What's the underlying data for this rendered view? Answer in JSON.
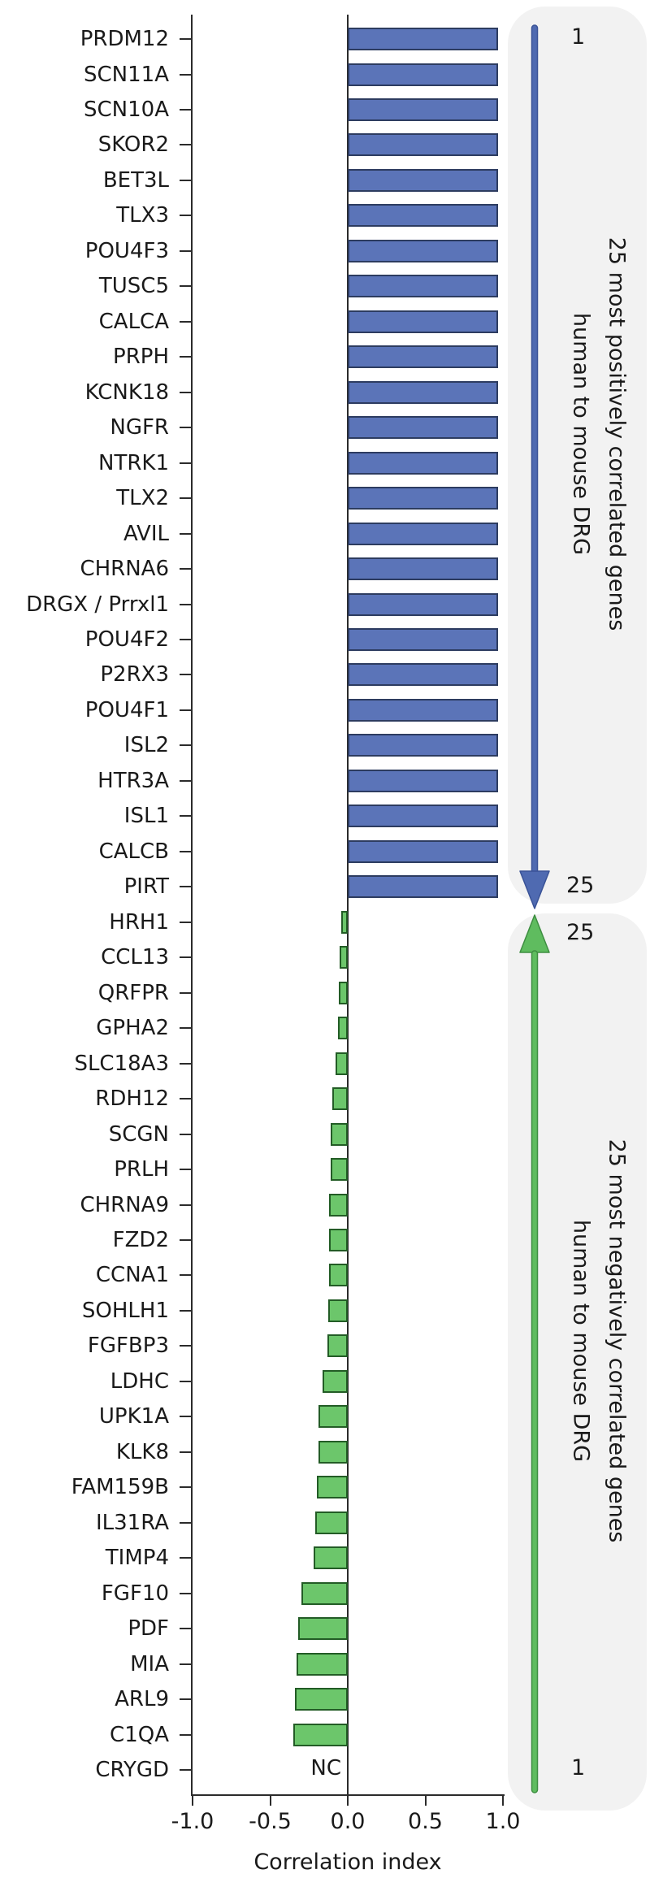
{
  "figure_title": "",
  "chart_data": {
    "type": "bar",
    "orientation": "horizontal",
    "xlabel": "Correlation index",
    "xlim": [
      -1.0,
      1.0
    ],
    "x_ticks": [
      -1.0,
      -0.5,
      0.0,
      0.5,
      1.0
    ],
    "x_tick_labels": [
      "-1.0",
      "-0.5",
      "0.0",
      "0.5",
      "1.0"
    ],
    "grid": false,
    "nc_annotation": "NC",
    "genes": [
      {
        "name": "PRDM12",
        "value": 0.97,
        "group": "positive"
      },
      {
        "name": "SCN11A",
        "value": 0.97,
        "group": "positive"
      },
      {
        "name": "SCN10A",
        "value": 0.97,
        "group": "positive"
      },
      {
        "name": "SKOR2",
        "value": 0.97,
        "group": "positive"
      },
      {
        "name": "BET3L",
        "value": 0.97,
        "group": "positive"
      },
      {
        "name": "TLX3",
        "value": 0.97,
        "group": "positive"
      },
      {
        "name": "POU4F3",
        "value": 0.97,
        "group": "positive"
      },
      {
        "name": "TUSC5",
        "value": 0.97,
        "group": "positive"
      },
      {
        "name": "CALCA",
        "value": 0.97,
        "group": "positive"
      },
      {
        "name": "PRPH",
        "value": 0.97,
        "group": "positive"
      },
      {
        "name": "KCNK18",
        "value": 0.97,
        "group": "positive"
      },
      {
        "name": "NGFR",
        "value": 0.97,
        "group": "positive"
      },
      {
        "name": "NTRK1",
        "value": 0.97,
        "group": "positive"
      },
      {
        "name": "TLX2",
        "value": 0.97,
        "group": "positive"
      },
      {
        "name": "AVIL",
        "value": 0.97,
        "group": "positive"
      },
      {
        "name": "CHRNA6",
        "value": 0.97,
        "group": "positive"
      },
      {
        "name": "DRGX / Prrxl1",
        "value": 0.97,
        "group": "positive"
      },
      {
        "name": "POU4F2",
        "value": 0.97,
        "group": "positive"
      },
      {
        "name": "P2RX3",
        "value": 0.97,
        "group": "positive"
      },
      {
        "name": "POU4F1",
        "value": 0.97,
        "group": "positive"
      },
      {
        "name": "ISL2",
        "value": 0.97,
        "group": "positive"
      },
      {
        "name": "HTR3A",
        "value": 0.97,
        "group": "positive"
      },
      {
        "name": "ISL1",
        "value": 0.97,
        "group": "positive"
      },
      {
        "name": "CALCB",
        "value": 0.97,
        "group": "positive"
      },
      {
        "name": "PIRT",
        "value": 0.97,
        "group": "positive"
      },
      {
        "name": "HRH1",
        "value": -0.04,
        "group": "negative"
      },
      {
        "name": "CCL13",
        "value": -0.05,
        "group": "negative"
      },
      {
        "name": "QRFPR",
        "value": -0.06,
        "group": "negative"
      },
      {
        "name": "GPHA2",
        "value": -0.065,
        "group": "negative"
      },
      {
        "name": "SLC18A3",
        "value": -0.08,
        "group": "negative"
      },
      {
        "name": "RDH12",
        "value": -0.1,
        "group": "negative"
      },
      {
        "name": "SCGN",
        "value": -0.11,
        "group": "negative"
      },
      {
        "name": "PRLH",
        "value": -0.11,
        "group": "negative"
      },
      {
        "name": "CHRNA9",
        "value": -0.12,
        "group": "negative"
      },
      {
        "name": "FZD2",
        "value": -0.12,
        "group": "negative"
      },
      {
        "name": "CCNA1",
        "value": -0.12,
        "group": "negative"
      },
      {
        "name": "SOHLH1",
        "value": -0.125,
        "group": "negative"
      },
      {
        "name": "FGFBP3",
        "value": -0.13,
        "group": "negative"
      },
      {
        "name": "LDHC",
        "value": -0.16,
        "group": "negative"
      },
      {
        "name": "UPK1A",
        "value": -0.19,
        "group": "negative"
      },
      {
        "name": "KLK8",
        "value": -0.19,
        "group": "negative"
      },
      {
        "name": "FAM159B",
        "value": -0.2,
        "group": "negative"
      },
      {
        "name": "IL31RA",
        "value": -0.21,
        "group": "negative"
      },
      {
        "name": "TIMP4",
        "value": -0.22,
        "group": "negative"
      },
      {
        "name": "FGF10",
        "value": -0.3,
        "group": "negative"
      },
      {
        "name": "PDF",
        "value": -0.32,
        "group": "negative"
      },
      {
        "name": "MIA",
        "value": -0.33,
        "group": "negative"
      },
      {
        "name": "ARL9",
        "value": -0.34,
        "group": "negative"
      },
      {
        "name": "C1QA",
        "value": -0.35,
        "group": "negative"
      },
      {
        "name": "CRYGD",
        "value": null,
        "group": "negative",
        "annotation": "NC"
      }
    ]
  },
  "panels": {
    "positive": {
      "rank_top": "1",
      "rank_bottom": "25",
      "caption_line1": "25 most positively correlated genes",
      "caption_line2": "human to mouse DRG"
    },
    "negative": {
      "rank_top": "25",
      "rank_bottom": "1",
      "caption_line1": "25 most negatively correlated genes",
      "caption_line2": "human to mouse DRG"
    }
  },
  "colors": {
    "positive_bar_fill": "#5b74b8",
    "positive_bar_border": "#2d3c60",
    "negative_bar_fill": "#6cc66b",
    "negative_bar_border": "#235c26",
    "positive_arrow_fill": "#4f6ab1",
    "positive_arrow_stroke": "#3a5397",
    "negative_arrow_fill": "#5fbc5f",
    "negative_arrow_stroke": "#3e8e41",
    "panel_background": "#f2f2f2",
    "axis": "#2b2b2b",
    "text": "#1a1a1a"
  }
}
